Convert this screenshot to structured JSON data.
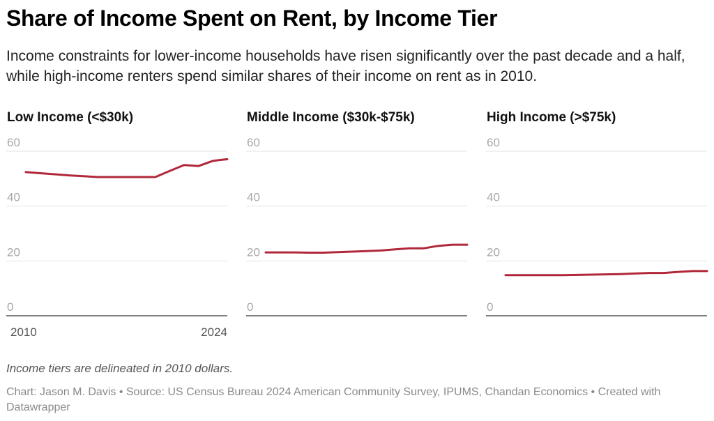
{
  "header": {
    "title": "Share of Income Spent on Rent, by Income Tier",
    "subtitle": "Income constraints for lower-income households have risen significantly over the past decade and a half, while high-income renters spend similar shares of their income on rent as in 2010."
  },
  "footer": {
    "note": "Income tiers are delineated in 2010 dollars.",
    "credit": "Chart: Jason M. Davis • Source: US Census Bureau 2024 American Community Survey, IPUMS, Chandan Economics • Created with Datawrapper"
  },
  "colors": {
    "line": "#b0283a",
    "gridline": "#e2e2e2",
    "baseline": "#333333"
  },
  "chart_data": [
    {
      "type": "line",
      "title": "Low Income (<$30k)",
      "x": [
        2010,
        2011,
        2012,
        2013,
        2014,
        2015,
        2016,
        2017,
        2018,
        2019,
        2020,
        2021,
        2022,
        2023,
        2024
      ],
      "x_tick_labels": [
        "2010",
        "2024"
      ],
      "ylim": [
        0,
        60
      ],
      "y_ticks": [
        0,
        20,
        40,
        60
      ],
      "grid": true,
      "series": [
        {
          "values": [
            52.4,
            52.0,
            51.6,
            51.2,
            50.9,
            50.6,
            50.6,
            50.6,
            50.6,
            50.6,
            52.8,
            55.0,
            54.6,
            56.5,
            57.1
          ]
        }
      ]
    },
    {
      "type": "line",
      "title": "Middle Income ($30k-$75k)",
      "x": [
        2010,
        2011,
        2012,
        2013,
        2014,
        2015,
        2016,
        2017,
        2018,
        2019,
        2020,
        2021,
        2022,
        2023,
        2024
      ],
      "ylim": [
        0,
        60
      ],
      "y_ticks": [
        0,
        20,
        40,
        60
      ],
      "grid": true,
      "series": [
        {
          "values": [
            23.1,
            23.1,
            23.1,
            23.0,
            23.0,
            23.2,
            23.4,
            23.6,
            23.8,
            24.2,
            24.6,
            24.6,
            25.5,
            25.9,
            25.9
          ]
        }
      ]
    },
    {
      "type": "line",
      "title": "High Income (>$75k)",
      "x": [
        2010,
        2011,
        2012,
        2013,
        2014,
        2015,
        2016,
        2017,
        2018,
        2019,
        2020,
        2021,
        2022,
        2023,
        2024
      ],
      "ylim": [
        0,
        60
      ],
      "y_ticks": [
        0,
        20,
        40,
        60
      ],
      "grid": true,
      "series": [
        {
          "values": [
            14.8,
            14.8,
            14.8,
            14.8,
            14.8,
            14.9,
            15.0,
            15.1,
            15.2,
            15.4,
            15.6,
            15.6,
            16.0,
            16.3,
            16.3
          ]
        }
      ]
    }
  ]
}
